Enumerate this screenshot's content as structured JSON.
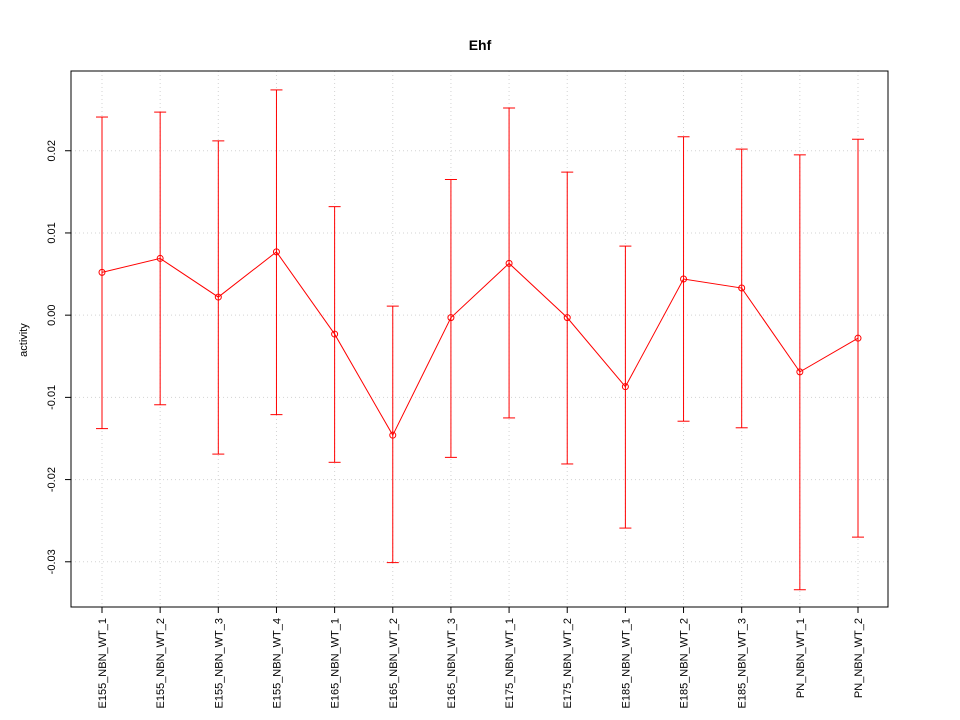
{
  "colors": {
    "series": "#ff0000",
    "grid": "#d3d3d3",
    "frame": "#000000"
  },
  "chart_data": {
    "type": "line",
    "title": "Ehf",
    "xlabel": "",
    "ylabel": "activity",
    "categories": [
      "E155_NBN_WT_1",
      "E155_NBN_WT_2",
      "E155_NBN_WT_3",
      "E155_NBN_WT_4",
      "E165_NBN_WT_1",
      "E165_NBN_WT_2",
      "E165_NBN_WT_3",
      "E175_NBN_WT_1",
      "E175_NBN_WT_2",
      "E185_NBN_WT_1",
      "E185_NBN_WT_2",
      "E185_NBN_WT_3",
      "PN_NBN_WT_1",
      "PN_NBN_WT_2"
    ],
    "series": [
      {
        "values": [
          0.0052,
          0.0069,
          0.0022,
          0.0077,
          -0.0023,
          -0.0146,
          -0.0003,
          0.0063,
          -0.0003,
          -0.0087,
          0.0044,
          0.0033,
          -0.0069,
          -0.0028
        ],
        "upper": [
          0.0241,
          0.0247,
          0.0212,
          0.0274,
          0.0132,
          0.0011,
          0.0165,
          0.0252,
          0.0174,
          0.0084,
          0.0217,
          0.0202,
          0.0195,
          0.0214
        ],
        "lower": [
          -0.0138,
          -0.0109,
          -0.0169,
          -0.0121,
          -0.0179,
          -0.0301,
          -0.0173,
          -0.0125,
          -0.0181,
          -0.0259,
          -0.0129,
          -0.0137,
          -0.0334,
          -0.027
        ]
      }
    ],
    "ylim": [
      -0.0355,
      0.0297
    ],
    "yticks": [
      -0.03,
      -0.02,
      -0.01,
      0.0,
      0.01,
      0.02
    ],
    "ytick_labels": [
      "-0.03",
      "-0.02",
      "-0.01",
      "0.00",
      "0.01",
      "0.02"
    ],
    "grid": true
  }
}
